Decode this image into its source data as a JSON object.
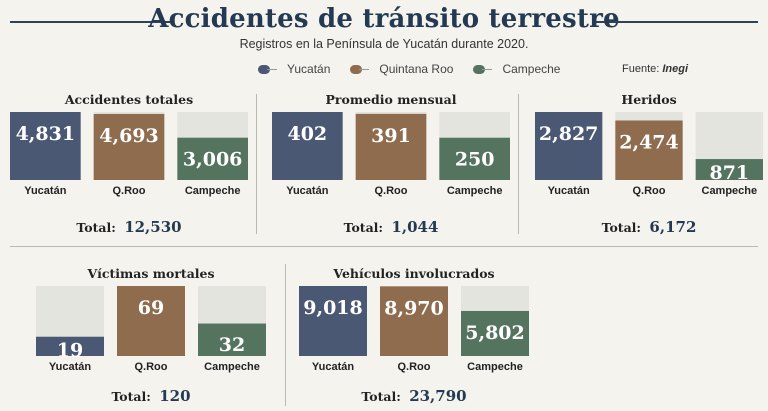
{
  "header": {
    "title": "Accidentes de tránsito terrestre",
    "subtitle": "Registros en la Península de Yucatán durante 2020.",
    "source_label": "Fuente:",
    "source_name": "Inegi"
  },
  "legend": [
    {
      "label": "Yucatán",
      "color": "#4b5874"
    },
    {
      "label": "Quintana Roo",
      "color": "#8e6c4d"
    },
    {
      "label": "Campeche",
      "color": "#557460"
    }
  ],
  "colors": {
    "track": "#e4e4df",
    "yucatan": "#4b5874",
    "qroo": "#8e6c4d",
    "campeche": "#557460"
  },
  "chart_data": [
    {
      "type": "bar",
      "title": "Accidentes totales",
      "categories": [
        "Yucatán",
        "Q.Roo",
        "Campeche"
      ],
      "values": [
        4831,
        4693,
        3006
      ],
      "value_labels": [
        "4,831",
        "4,693",
        "3,006"
      ],
      "total_label": "Total:",
      "total": "12,530"
    },
    {
      "type": "bar",
      "title": "Promedio mensual",
      "categories": [
        "Yucatán",
        "Q.Roo",
        "Campeche"
      ],
      "values": [
        402,
        391,
        250
      ],
      "value_labels": [
        "402",
        "391",
        "250"
      ],
      "total_label": "Total:",
      "total": "1,044"
    },
    {
      "type": "bar",
      "title": "Heridos",
      "categories": [
        "Yucatán",
        "Q.Roo",
        "Campeche"
      ],
      "values": [
        2827,
        2474,
        871
      ],
      "value_labels": [
        "2,827",
        "2,474",
        "871"
      ],
      "total_label": "Total:",
      "total": "6,172"
    },
    {
      "type": "bar",
      "title": "Víctimas mortales",
      "categories": [
        "Yucatán",
        "Q.Roo",
        "Campeche"
      ],
      "values": [
        19,
        69,
        32
      ],
      "value_labels": [
        "19",
        "69",
        "32"
      ],
      "total_label": "Total:",
      "total": "120"
    },
    {
      "type": "bar",
      "title": "Vehículos involucrados",
      "categories": [
        "Yucatán",
        "Q.Roo",
        "Campeche"
      ],
      "values": [
        9018,
        8970,
        5802
      ],
      "value_labels": [
        "9,018",
        "8,970",
        "5,802"
      ],
      "total_label": "Total:",
      "total": "23,790"
    }
  ]
}
